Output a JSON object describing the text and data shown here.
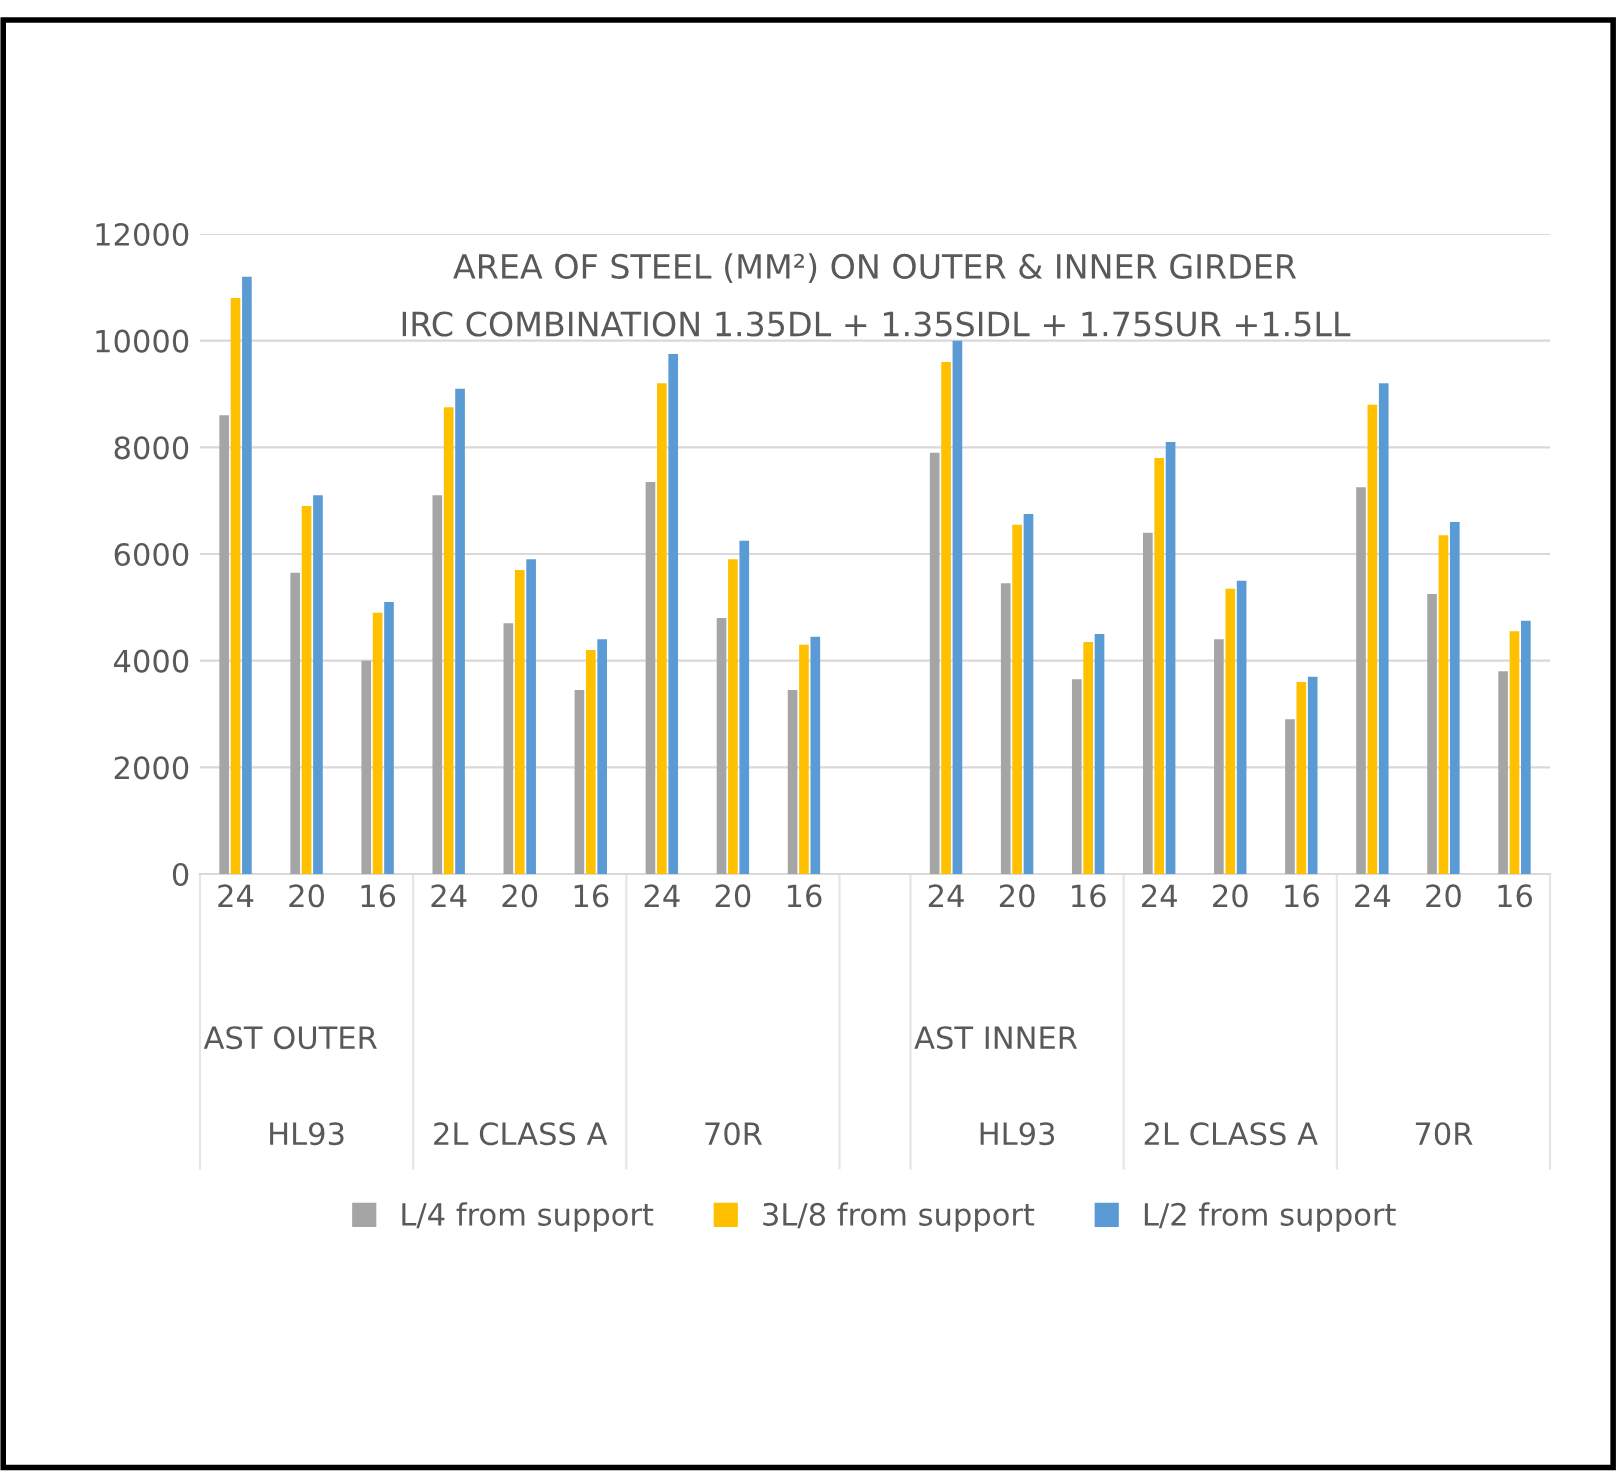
{
  "chart_data": {
    "type": "bar",
    "title": "AREA OF STEEL (MM²) ON OUTER & INNER GIRDER",
    "subtitle": "IRC COMBINATION 1.35DL + 1.35SIDL + 1.75SUR +1.5LL",
    "categories": [
      "24",
      "20",
      "16",
      "24",
      "20",
      "16",
      "24",
      "20",
      "16",
      null,
      "24",
      "20",
      "16",
      "24",
      "20",
      "16",
      "24",
      "20",
      "16"
    ],
    "series": [
      {
        "name": "L/4 from support",
        "color": "#a5a5a5",
        "values": [
          8600,
          5650,
          4000,
          7100,
          4700,
          3450,
          7350,
          4800,
          3450,
          null,
          7900,
          5450,
          3650,
          6400,
          4400,
          2900,
          7250,
          5250,
          3800
        ]
      },
      {
        "name": "3L/8 from support",
        "color": "#ffc000",
        "values": [
          10800,
          6900,
          4900,
          8750,
          5700,
          4200,
          9200,
          5900,
          4300,
          null,
          9600,
          6550,
          4350,
          7800,
          5350,
          3600,
          8800,
          6350,
          4550
        ]
      },
      {
        "name": "L/2 from support",
        "color": "#5b9bd5",
        "values": [
          11200,
          7100,
          5100,
          9100,
          5900,
          4400,
          9750,
          6250,
          4450,
          null,
          10000,
          6750,
          4500,
          8100,
          5500,
          3700,
          9200,
          6600,
          4750
        ]
      }
    ],
    "ylim": [
      0,
      12000
    ],
    "yticks": [
      0,
      2000,
      4000,
      6000,
      8000,
      10000,
      12000
    ],
    "grid": "y",
    "legend": "bottom",
    "annotations": [
      "AST OUTER",
      "HL93",
      "2L CLASS A",
      "70R",
      "AST INNER",
      "HL93",
      "2L CLASS A",
      "70R"
    ]
  }
}
